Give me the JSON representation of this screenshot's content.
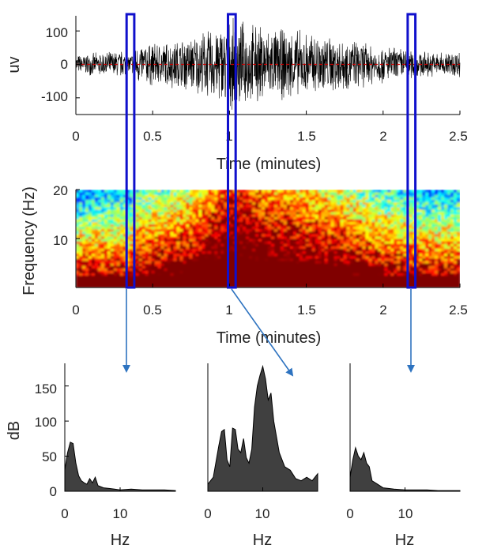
{
  "chart_data": [
    {
      "type": "line",
      "panel": "eeg-trace",
      "xlabel": "Time (minutes)",
      "ylabel": "uv",
      "xlim": [
        0,
        2.5
      ],
      "ylim": [
        -150,
        150
      ],
      "x_ticks": [
        "0",
        "0.5",
        "1",
        "1.5",
        "2",
        "2.5"
      ],
      "y_ticks": [
        "100",
        "0",
        "-100"
      ],
      "envelope": {
        "t": [
          0,
          0.1,
          0.2,
          0.3,
          0.35,
          0.4,
          0.5,
          0.6,
          0.7,
          0.8,
          0.9,
          1.0,
          1.1,
          1.2,
          1.3,
          1.4,
          1.5,
          1.6,
          1.7,
          1.8,
          1.9,
          2.0,
          2.1,
          2.2,
          2.3,
          2.4,
          2.5
        ],
        "amplitude": [
          30,
          35,
          40,
          45,
          30,
          65,
          70,
          75,
          85,
          100,
          120,
          140,
          135,
          125,
          115,
          115,
          105,
          100,
          90,
          80,
          70,
          60,
          55,
          45,
          40,
          40,
          45
        ]
      },
      "baseline": 0,
      "baseline_color": "#cc0000",
      "trace_color": "#000000",
      "highlight_windows": [
        [
          0.33,
          0.38
        ],
        [
          0.99,
          1.04
        ],
        [
          2.16,
          2.21
        ]
      ],
      "highlight_color": "#1010cc"
    },
    {
      "type": "heatmap",
      "panel": "spectrogram",
      "xlabel": "Time (minutes)",
      "ylabel": "Frequency (Hz)",
      "xlim": [
        0,
        2.5
      ],
      "ylim": [
        0,
        20
      ],
      "x_ticks": [
        "0",
        "0.5",
        "1",
        "1.5",
        "2",
        "2.5"
      ],
      "y_ticks": [
        "20",
        "10"
      ],
      "colormap": "jet",
      "highlight_windows": [
        [
          0.33,
          0.38
        ],
        [
          0.99,
          1.04
        ],
        [
          2.16,
          2.21
        ]
      ],
      "highlight_color": "#1010cc"
    },
    {
      "type": "area",
      "panel": "spectrum-1",
      "xlabel": "Hz",
      "ylabel": "dB",
      "xlim": [
        0,
        20
      ],
      "ylim": [
        0,
        180
      ],
      "x_ticks": [
        "0",
        "10"
      ],
      "y_ticks": [
        "150",
        "100",
        "50",
        "0"
      ],
      "x": [
        0,
        0.5,
        1,
        1.5,
        2,
        2.5,
        3,
        3.5,
        4,
        4.5,
        5,
        5.5,
        6,
        7,
        8,
        9,
        10,
        12,
        14,
        16,
        18,
        20
      ],
      "y": [
        30,
        55,
        70,
        68,
        40,
        22,
        15,
        12,
        10,
        18,
        12,
        20,
        8,
        5,
        4,
        3,
        2,
        3,
        2,
        2,
        2,
        1
      ]
    },
    {
      "type": "area",
      "panel": "spectrum-2",
      "xlabel": "Hz",
      "ylabel": "",
      "xlim": [
        0,
        20
      ],
      "ylim": [
        0,
        180
      ],
      "x_ticks": [
        "0",
        "10"
      ],
      "y_ticks": [],
      "x": [
        0,
        1,
        2,
        2.5,
        3,
        3.5,
        4,
        4.5,
        5,
        5.5,
        6,
        6.5,
        7,
        7.5,
        8,
        8.5,
        9,
        9.5,
        10,
        10.5,
        11,
        11.5,
        12,
        13,
        14,
        15,
        16,
        17,
        18,
        19,
        20
      ],
      "y": [
        10,
        20,
        65,
        85,
        88,
        45,
        35,
        90,
        88,
        60,
        55,
        75,
        48,
        40,
        60,
        120,
        150,
        165,
        178,
        160,
        130,
        140,
        100,
        55,
        35,
        30,
        18,
        15,
        20,
        15,
        25
      ]
    },
    {
      "type": "area",
      "panel": "spectrum-3",
      "xlabel": "Hz",
      "ylabel": "",
      "xlim": [
        0,
        20
      ],
      "ylim": [
        0,
        180
      ],
      "x_ticks": [
        "0",
        "10"
      ],
      "y_ticks": [],
      "x": [
        0,
        0.5,
        1,
        1.5,
        2,
        2.5,
        3,
        3.5,
        4,
        5,
        6,
        7,
        8,
        10,
        12,
        14,
        16,
        18,
        20
      ],
      "y": [
        20,
        45,
        62,
        50,
        45,
        55,
        40,
        35,
        15,
        10,
        5,
        4,
        3,
        2,
        2,
        2,
        1,
        1,
        1
      ]
    }
  ]
}
